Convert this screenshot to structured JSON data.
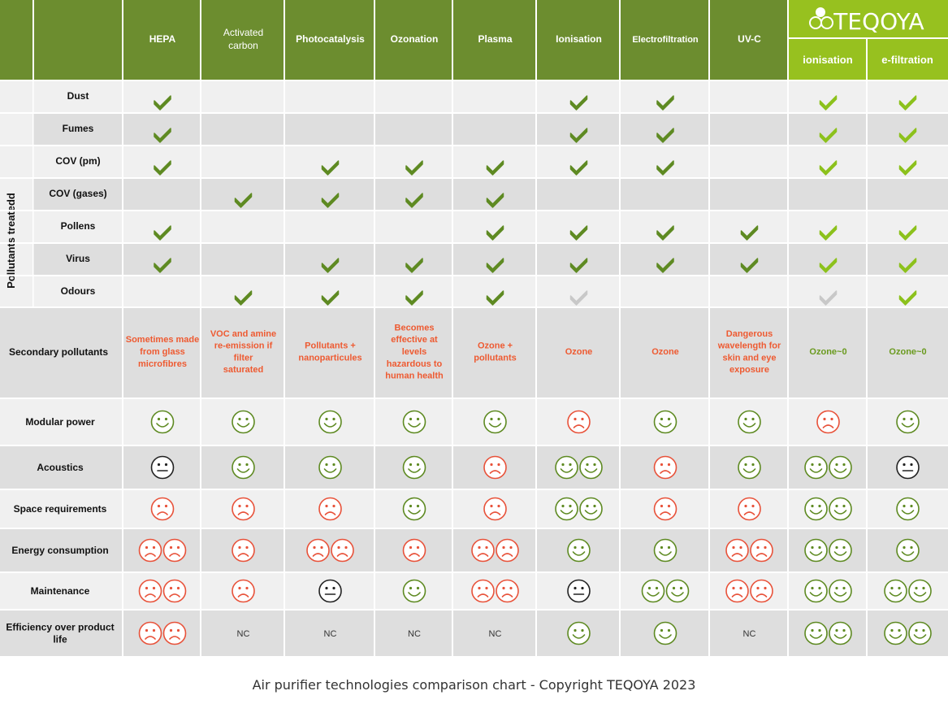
{
  "brand": {
    "logo_text": "TEQOYA",
    "sub_columns": [
      "ionisation",
      "e-filtration"
    ]
  },
  "columns": [
    "HEPA",
    "Activated carbon",
    "Photocatalysis",
    "Ozonation",
    "Plasma",
    "Ionisation",
    "Electrofiltration",
    "UV-C",
    "ionisation",
    "e-filtration"
  ],
  "pollutants_section_label": "Pollutants treatedd",
  "colors": {
    "header_green": "#6c8d2f",
    "brand_green": "#97c11f",
    "check_green": "#5e8a22",
    "check_light": "#8cc11c",
    "check_gray": "#c8c8c8",
    "smiley_good": "#5e8a22",
    "smiley_bad": "#e8523a",
    "smiley_neutral": "#222222",
    "secondary_text": "#ee5a31",
    "secondary_teqoya": "#6a9a1f",
    "row_light": "#f0f0f0",
    "row_dark": "#dedede"
  },
  "chart_data": {
    "type": "table",
    "pollutant_rows": [
      {
        "label": "Dust",
        "cells": [
          "G",
          "",
          "",
          "",
          "",
          "G",
          "G",
          "",
          "L",
          "L"
        ]
      },
      {
        "label": "Fumes",
        "cells": [
          "G",
          "",
          "",
          "",
          "",
          "G",
          "G",
          "",
          "L",
          "L"
        ]
      },
      {
        "label": "COV (pm)",
        "cells": [
          "G",
          "",
          "G",
          "G",
          "G",
          "G",
          "G",
          "",
          "L",
          "L"
        ]
      },
      {
        "label": "COV (gases)",
        "cells": [
          "",
          "G",
          "G",
          "G",
          "G",
          "",
          "",
          "",
          "",
          ""
        ]
      },
      {
        "label": "Pollens",
        "cells": [
          "G",
          "",
          "",
          "",
          "G",
          "G",
          "G",
          "G",
          "L",
          "L"
        ]
      },
      {
        "label": "Virus",
        "cells": [
          "G",
          "",
          "G",
          "G",
          "G",
          "G",
          "G",
          "G",
          "L",
          "L"
        ]
      },
      {
        "label": "Odours",
        "cells": [
          "",
          "G",
          "G",
          "G",
          "G",
          "X",
          "",
          "",
          "X",
          "L"
        ]
      }
    ],
    "secondary_pollutants": {
      "label": "Secondary pollutants",
      "cells": [
        "Sometimes made from glass microfibres",
        "VOC and amine re-emission if filter saturated",
        "Pollutants + nanoparticules",
        "Becomes effective at levels hazardous to human health",
        "Ozone + pollutants",
        "Ozone",
        "Ozone",
        "Dangerous wavelength for skin and eye exposure",
        "Ozone~0",
        "Ozone~0"
      ]
    },
    "rating_rows": [
      {
        "label": "Modular power",
        "cells": [
          "g",
          "g",
          "g",
          "g",
          "g",
          "b",
          "g",
          "g",
          "b",
          "g"
        ]
      },
      {
        "label": "Acoustics",
        "cells": [
          "n",
          "g",
          "g",
          "g",
          "b",
          "gg",
          "b",
          "g",
          "gg",
          "n"
        ]
      },
      {
        "label": "Space requirements",
        "cells": [
          "b",
          "b",
          "b",
          "g",
          "b",
          "gg",
          "b",
          "b",
          "gg",
          "g"
        ]
      },
      {
        "label": "Energy consumption",
        "cells": [
          "bb",
          "b",
          "bb",
          "b",
          "bb",
          "g",
          "g",
          "bb",
          "gg",
          "g"
        ]
      },
      {
        "label": "Maintenance",
        "cells": [
          "bb",
          "b",
          "n",
          "g",
          "bb",
          "n",
          "gg",
          "bb",
          "gg",
          "gg"
        ]
      },
      {
        "label": "Efficiency over product life",
        "cells": [
          "bb",
          "NC",
          "NC",
          "NC",
          "NC",
          "g",
          "g",
          "NC",
          "gg",
          "gg"
        ]
      }
    ]
  },
  "caption": "Air purifier technologies comparison chart - Copyright TEQOYA 2023"
}
